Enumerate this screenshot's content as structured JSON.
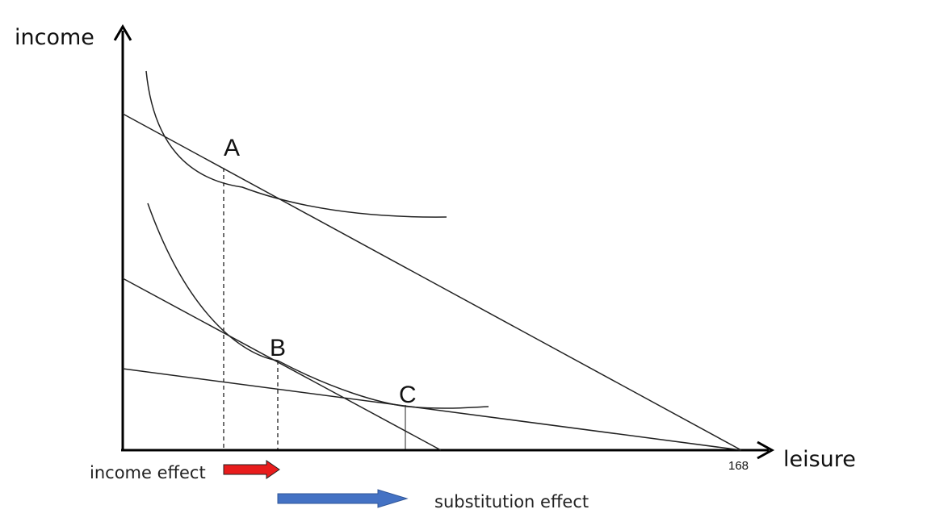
{
  "axes": {
    "y_label": "income",
    "x_label": "leisure",
    "x_tick": "168"
  },
  "points": {
    "a": "A",
    "b": "B",
    "c": "C"
  },
  "effects": {
    "income": {
      "label": "income effect",
      "color": "#e81c1c"
    },
    "substitution": {
      "label": "substitution effect",
      "color": "#4472c4"
    }
  }
}
